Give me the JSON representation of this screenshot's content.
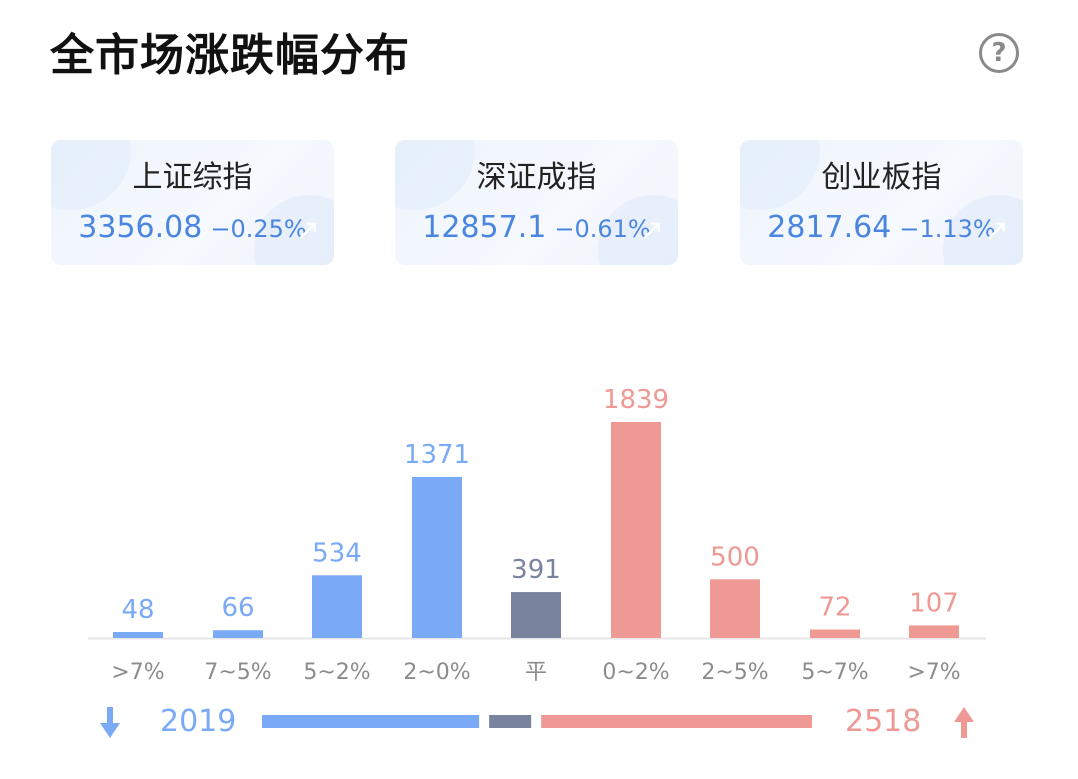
{
  "title": "全市场涨跌幅分布",
  "help_icon": "?",
  "indices": [
    {
      "name": "上证综指",
      "value": "3356.08",
      "change": "−0.25%"
    },
    {
      "name": "深证成指",
      "value": "12857.1",
      "change": "−0.61%"
    },
    {
      "name": "创业板指",
      "value": "2817.64",
      "change": "−1.13%"
    }
  ],
  "colors": {
    "down": "#7aaaf6",
    "flat": "#7a839e",
    "up": "#ef9995",
    "axis": "#e6e6e6",
    "tick": "#8c8c8c"
  },
  "chart_data": {
    "type": "bar",
    "title": "全市场涨跌幅分布",
    "categories": [
      ">7%",
      "7~5%",
      "5~2%",
      "2~0%",
      "平",
      "0~2%",
      "2~5%",
      "5~7%",
      ">7%"
    ],
    "values": [
      48,
      66,
      534,
      1371,
      391,
      1839,
      500,
      72,
      107
    ],
    "groups": [
      "down",
      "down",
      "down",
      "down",
      "flat",
      "up",
      "up",
      "up",
      "up"
    ],
    "ylim": [
      0,
      1839
    ],
    "xlabel": "",
    "ylabel": "",
    "grid": false
  },
  "summary": {
    "down_count": "2019",
    "up_count": "2518",
    "down_icon": "arrow-down-icon",
    "up_icon": "arrow-up-icon"
  }
}
